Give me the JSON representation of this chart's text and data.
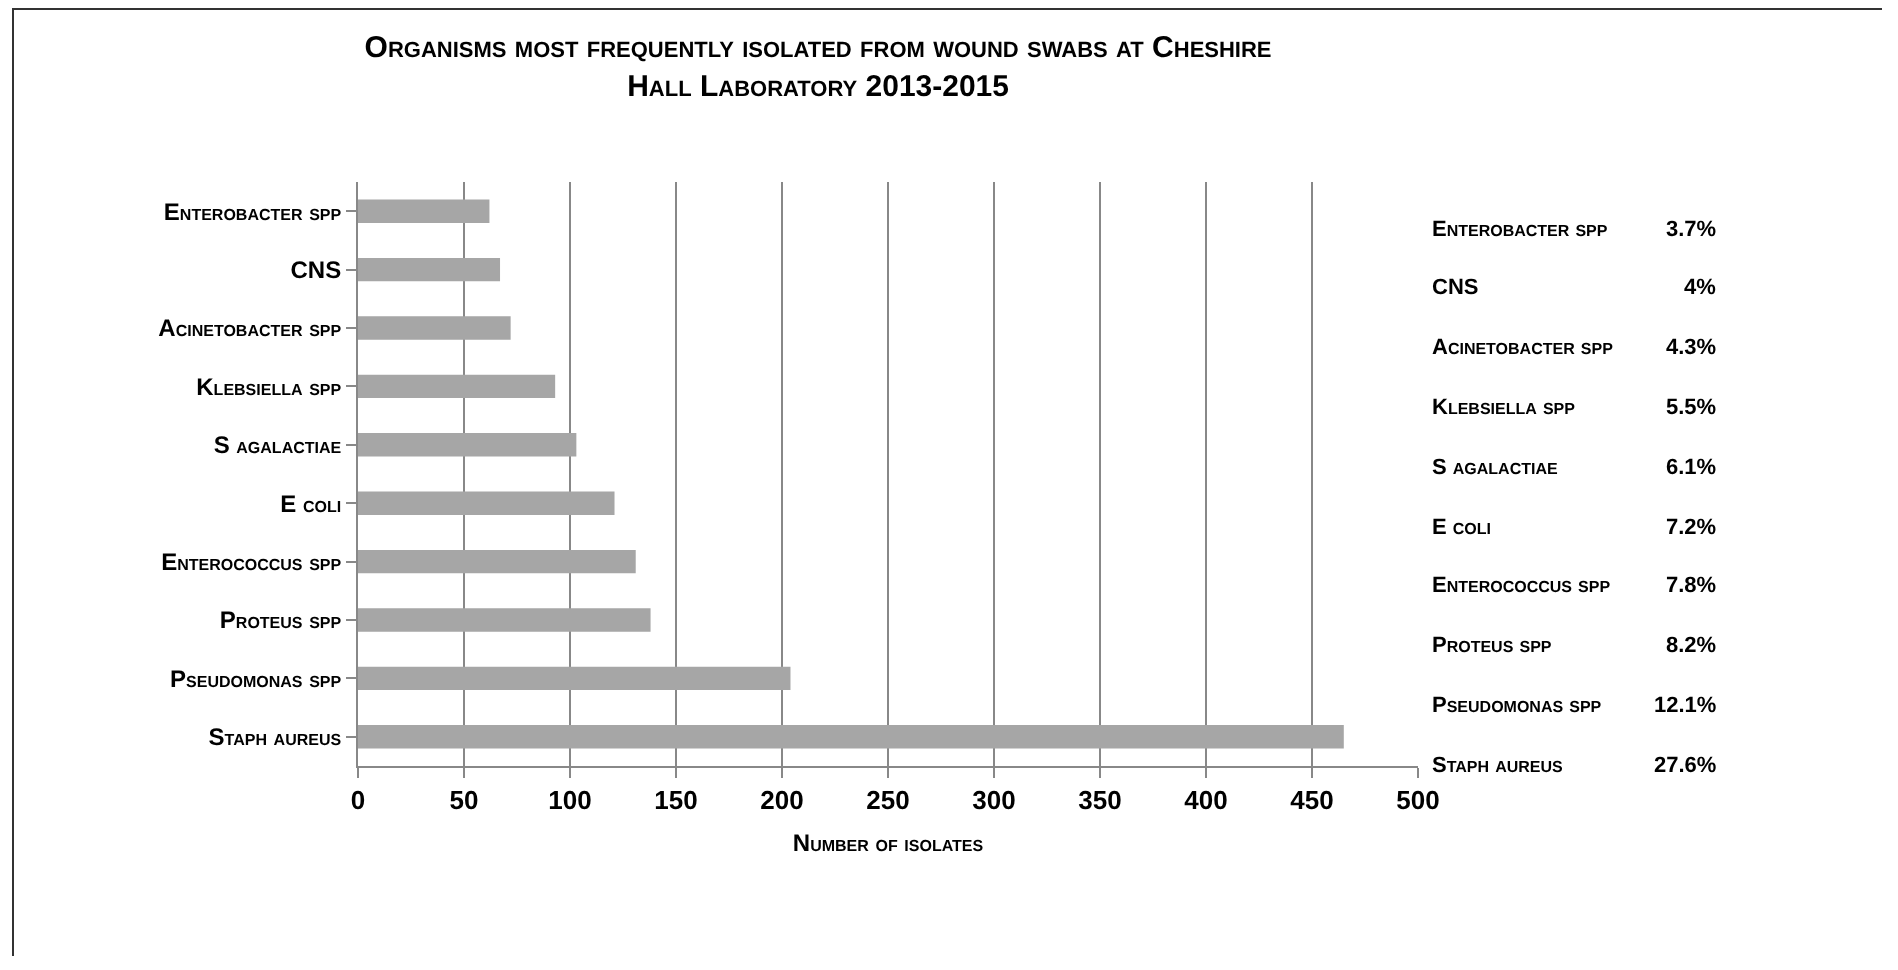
{
  "chart_data": {
    "type": "bar",
    "orientation": "horizontal",
    "title": "Organisms most frequently isolated from wound swabs at Cheshire Hall Laboratory 2013-2015",
    "xlabel": "Number of isolates",
    "categories": [
      "Enterobacter spp",
      "CNS",
      "Acinetobacter spp",
      "Klebsiella spp",
      "S agalactiae",
      "E coli",
      "Enterococcus spp",
      "Proteus spp",
      "Pseudomonas spp",
      "Staph aureus"
    ],
    "values": [
      62,
      67,
      72,
      93,
      103,
      121,
      131,
      138,
      204,
      465
    ],
    "color": "#a6a6a6",
    "xlim": [
      0,
      500
    ],
    "xticks": [
      0,
      50,
      100,
      150,
      200,
      250,
      300,
      350,
      400,
      450,
      500
    ],
    "grid": "x",
    "annotations": [
      "Enterobacter spp",
      "3.7%",
      "CNS",
      "4%",
      "Acinetobacter spp",
      "4.3%",
      "Klebsiella spp",
      "5.5%",
      "S agalactiae",
      "6.1%",
      "E coli",
      "7.2%",
      "Enterococcus spp",
      "7.8%",
      "Proteus spp",
      "8.2%",
      "Pseudomonas spp",
      "12.1%",
      "Staph aureus",
      "27.6%"
    ]
  }
}
